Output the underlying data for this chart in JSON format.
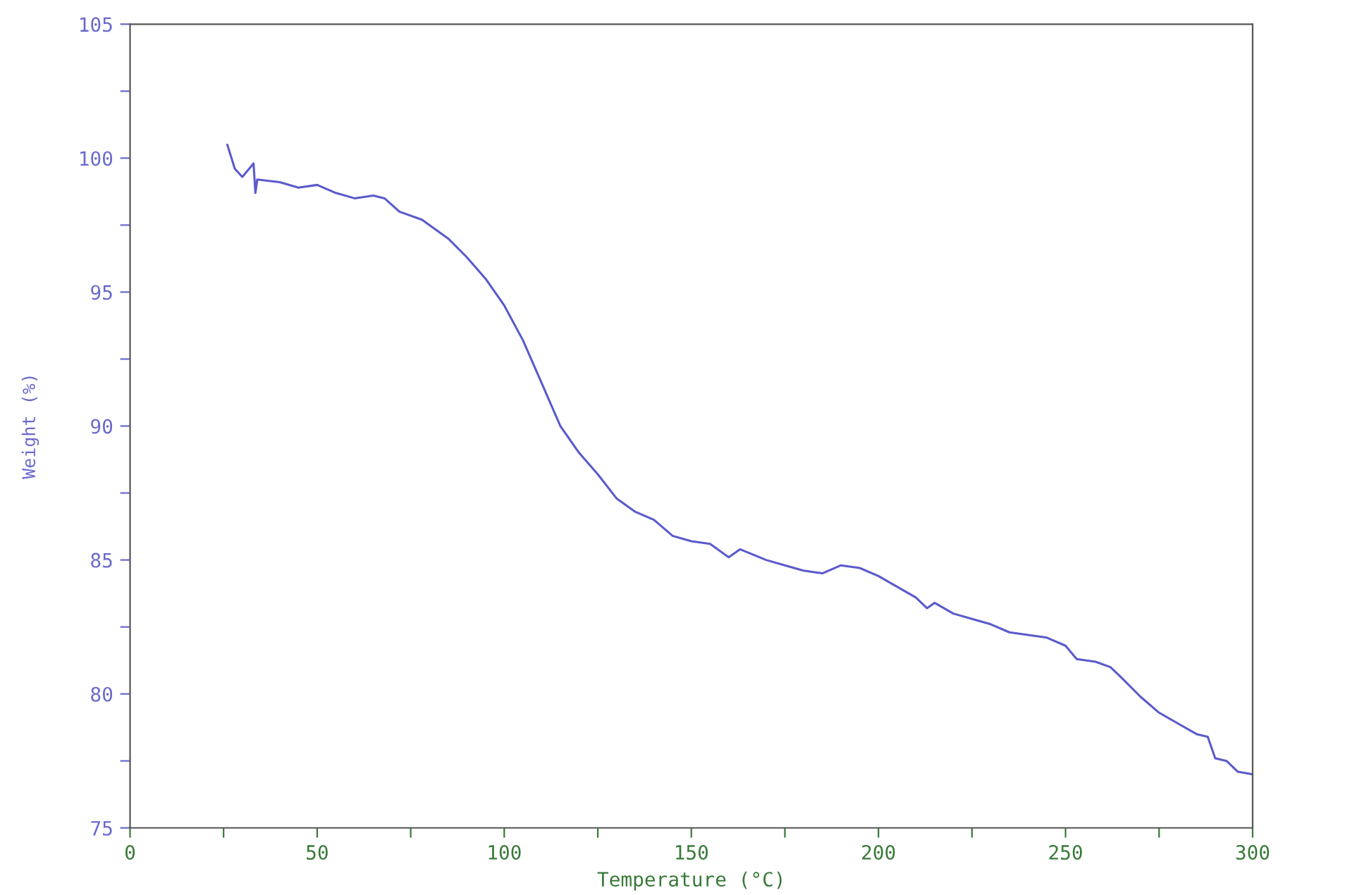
{
  "chart_data": {
    "type": "line",
    "xlabel": "Temperature (°C)",
    "ylabel": "Weight (%)",
    "series": [
      {
        "color": "#5a5acc",
        "x": [
          26,
          28,
          30,
          33,
          33.5,
          34,
          40,
          45,
          50,
          55,
          60,
          65,
          68,
          72,
          78,
          85,
          90,
          95,
          100,
          105,
          110,
          115,
          120,
          125,
          130,
          135,
          140,
          145,
          150,
          155,
          160,
          163,
          170,
          175,
          180,
          185,
          190,
          195,
          200,
          205,
          210,
          213,
          215,
          220,
          225,
          230,
          235,
          240,
          245,
          250,
          253,
          258,
          262,
          265,
          270,
          275,
          280,
          285,
          288,
          290,
          293,
          296,
          300
        ],
        "values": [
          100.5,
          99.6,
          99.3,
          99.8,
          98.7,
          99.2,
          99.1,
          98.9,
          99.0,
          98.7,
          98.5,
          98.6,
          98.5,
          98.0,
          97.7,
          97.0,
          96.3,
          95.5,
          94.5,
          93.2,
          91.6,
          90.0,
          89.0,
          88.2,
          87.3,
          86.8,
          86.5,
          85.9,
          85.7,
          85.6,
          85.1,
          85.4,
          85.0,
          84.8,
          84.6,
          84.5,
          84.8,
          84.7,
          84.4,
          84.0,
          83.6,
          83.2,
          83.4,
          83.0,
          82.8,
          82.6,
          82.3,
          82.2,
          82.1,
          81.8,
          81.3,
          81.2,
          81.0,
          80.6,
          79.9,
          79.3,
          78.9,
          78.5,
          78.4,
          77.6,
          77.5,
          77.1,
          77.0
        ]
      }
    ],
    "xlim": [
      0,
      300
    ],
    "ylim": [
      75,
      105
    ],
    "xticks": [
      0,
      {
        "value": 25,
        "label": null
      },
      50,
      {
        "value": 75,
        "label": null
      },
      100,
      {
        "value": 125,
        "label": null
      },
      150,
      {
        "value": 175,
        "label": null
      },
      200,
      {
        "value": 225,
        "label": null
      },
      250,
      {
        "value": 275,
        "label": null
      },
      300
    ],
    "yticks": [
      75,
      {
        "value": 77.5,
        "label": null
      },
      80,
      {
        "value": 82.5,
        "label": null
      },
      85,
      {
        "value": 87.5,
        "label": null
      },
      90,
      {
        "value": 92.5,
        "label": null
      },
      95,
      {
        "value": 97.5,
        "label": null
      },
      100,
      {
        "value": 102.5,
        "label": null
      },
      105
    ],
    "grid": false,
    "legend": false,
    "marker": "none",
    "line_style": "solid"
  }
}
